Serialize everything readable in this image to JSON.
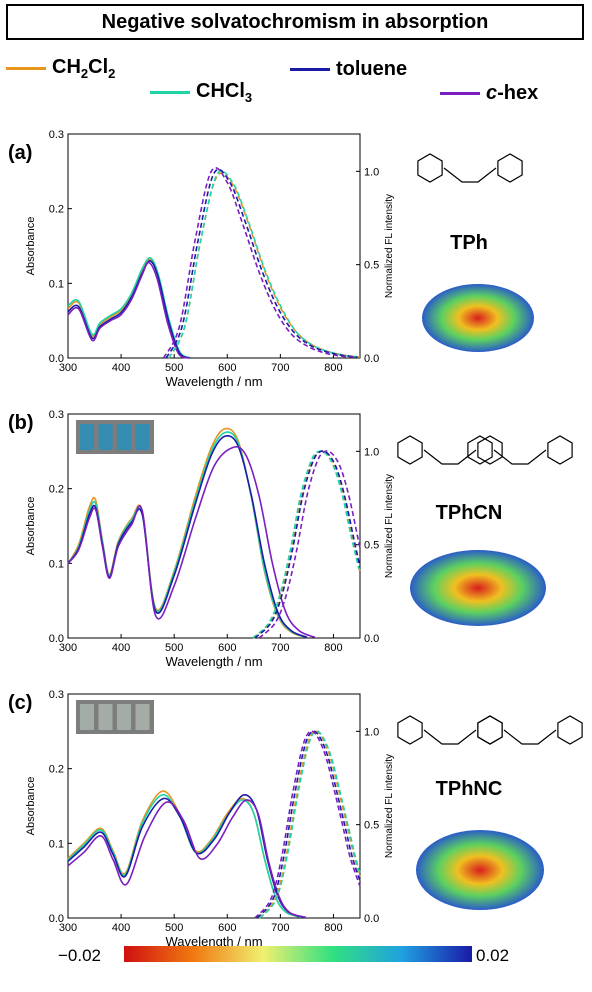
{
  "title": "Negative solvatochromism in absorption",
  "legend": [
    {
      "label": "CH₂Cl₂",
      "color": "#e8951e"
    },
    {
      "label": "CHCl₃",
      "color": "#1fd3a5"
    },
    {
      "label": "toluene",
      "color": "#1a1ca8"
    },
    {
      "label": "c-hex",
      "color": "#7a1fbf"
    }
  ],
  "colorbar": {
    "min_label": "−0.02",
    "max_label": "0.02"
  },
  "chart_data": [
    {
      "panel": "(a)",
      "molecule": "TPh",
      "type": "line",
      "xlabel": "Wavelength / nm",
      "ylabel": "Absorbance",
      "y2label": "Normalized FL intensity",
      "xlim": [
        300,
        850
      ],
      "ylim": [
        0,
        0.3
      ],
      "y2lim": [
        0,
        1.2
      ],
      "xticks": [
        "300",
        "400",
        "500",
        "600",
        "700",
        "800"
      ],
      "yticks": [
        "0.0",
        "0.1",
        "0.2",
        "0.3"
      ],
      "y2ticks": [
        "0.0",
        "0.5",
        "1.0"
      ],
      "abs_series": [
        {
          "name": "CH₂Cl₂",
          "x": [
            300,
            320,
            345,
            360,
            380,
            400,
            420,
            440,
            455,
            470,
            490,
            510,
            530
          ],
          "y": [
            0.066,
            0.074,
            0.03,
            0.045,
            0.055,
            0.064,
            0.085,
            0.118,
            0.132,
            0.11,
            0.05,
            0.008,
            0
          ]
        },
        {
          "name": "CHCl₃",
          "x": [
            300,
            320,
            345,
            360,
            380,
            400,
            420,
            440,
            455,
            470,
            490,
            510,
            530
          ],
          "y": [
            0.07,
            0.076,
            0.032,
            0.047,
            0.057,
            0.066,
            0.087,
            0.12,
            0.134,
            0.112,
            0.052,
            0.009,
            0
          ]
        },
        {
          "name": "toluene",
          "x": [
            300,
            320,
            345,
            360,
            380,
            400,
            420,
            440,
            455,
            470,
            490,
            510,
            530
          ],
          "y": [
            0.062,
            0.069,
            0.027,
            0.042,
            0.052,
            0.061,
            0.082,
            0.114,
            0.13,
            0.108,
            0.048,
            0.007,
            0
          ]
        },
        {
          "name": "c-hex",
          "x": [
            300,
            320,
            345,
            360,
            380,
            400,
            420,
            440,
            452,
            468,
            488,
            508,
            528
          ],
          "y": [
            0.058,
            0.066,
            0.024,
            0.04,
            0.05,
            0.058,
            0.079,
            0.112,
            0.128,
            0.106,
            0.046,
            0.006,
            0
          ]
        }
      ],
      "fl_series": [
        {
          "name": "CH₂Cl₂",
          "x": [
            490,
            520,
            550,
            580,
            610,
            640,
            670,
            700,
            730,
            760,
            790,
            820,
            850
          ],
          "y": [
            0,
            0.17,
            0.63,
            0.97,
            0.93,
            0.72,
            0.47,
            0.27,
            0.14,
            0.07,
            0.035,
            0.015,
            0.005
          ]
        },
        {
          "name": "CHCl₃",
          "x": [
            490,
            520,
            550,
            580,
            610,
            640,
            670,
            700,
            730,
            760,
            790,
            820,
            850
          ],
          "y": [
            0,
            0.17,
            0.63,
            0.98,
            0.94,
            0.73,
            0.48,
            0.28,
            0.14,
            0.07,
            0.035,
            0.015,
            0.005
          ]
        },
        {
          "name": "toluene",
          "x": [
            485,
            515,
            545,
            575,
            605,
            635,
            665,
            695,
            725,
            755,
            785,
            815,
            845
          ],
          "y": [
            0,
            0.17,
            0.63,
            0.99,
            0.94,
            0.72,
            0.47,
            0.27,
            0.14,
            0.07,
            0.035,
            0.015,
            0.005
          ]
        },
        {
          "name": "c-hex",
          "x": [
            480,
            510,
            540,
            570,
            600,
            630,
            660,
            690,
            720,
            750,
            780,
            810,
            840
          ],
          "y": [
            0,
            0.17,
            0.64,
            1.0,
            0.94,
            0.71,
            0.46,
            0.26,
            0.13,
            0.065,
            0.03,
            0.012,
            0.004
          ]
        }
      ]
    },
    {
      "panel": "(b)",
      "molecule": "TPhCN",
      "type": "line",
      "xlabel": "Wavelength / nm",
      "ylabel": "Absorbance",
      "y2label": "Normalized FL intensity",
      "xlim": [
        300,
        850
      ],
      "ylim": [
        0,
        0.3
      ],
      "y2lim": [
        0,
        1.2
      ],
      "xticks": [
        "300",
        "400",
        "500",
        "600",
        "700",
        "800"
      ],
      "yticks": [
        "0.0",
        "0.1",
        "0.2",
        "0.3"
      ],
      "y2ticks": [
        "0.0",
        "0.5",
        "1.0"
      ],
      "abs_series": [
        {
          "name": "CH₂Cl₂",
          "x": [
            300,
            320,
            340,
            352,
            365,
            378,
            395,
            420,
            440,
            465,
            500,
            540,
            570,
            595,
            620,
            645,
            670,
            695,
            720,
            750
          ],
          "y": [
            0.1,
            0.125,
            0.175,
            0.185,
            0.13,
            0.085,
            0.13,
            0.16,
            0.17,
            0.04,
            0.09,
            0.19,
            0.255,
            0.28,
            0.265,
            0.19,
            0.09,
            0.03,
            0.008,
            0.001
          ]
        },
        {
          "name": "CHCl₃",
          "x": [
            300,
            320,
            340,
            352,
            365,
            378,
            395,
            420,
            440,
            465,
            500,
            540,
            570,
            595,
            620,
            645,
            670,
            695,
            720,
            750
          ],
          "y": [
            0.1,
            0.122,
            0.17,
            0.18,
            0.128,
            0.083,
            0.128,
            0.158,
            0.168,
            0.038,
            0.088,
            0.185,
            0.25,
            0.275,
            0.262,
            0.19,
            0.092,
            0.032,
            0.009,
            0.001
          ]
        },
        {
          "name": "toluene",
          "x": [
            300,
            320,
            340,
            352,
            365,
            378,
            395,
            420,
            440,
            465,
            500,
            540,
            570,
            595,
            620,
            645,
            670,
            695,
            720,
            750
          ],
          "y": [
            0.1,
            0.12,
            0.165,
            0.175,
            0.125,
            0.082,
            0.126,
            0.155,
            0.165,
            0.036,
            0.084,
            0.18,
            0.245,
            0.27,
            0.258,
            0.192,
            0.1,
            0.035,
            0.01,
            0.001
          ]
        },
        {
          "name": "c-hex",
          "x": [
            300,
            320,
            340,
            352,
            365,
            378,
            395,
            420,
            440,
            465,
            500,
            540,
            575,
            610,
            635,
            660,
            685,
            710,
            735,
            765
          ],
          "y": [
            0.1,
            0.118,
            0.16,
            0.172,
            0.122,
            0.08,
            0.123,
            0.152,
            0.17,
            0.03,
            0.07,
            0.16,
            0.23,
            0.255,
            0.245,
            0.19,
            0.1,
            0.035,
            0.01,
            0.001
          ]
        }
      ],
      "fl_series": [
        {
          "name": "CH₂Cl₂",
          "x": [
            650,
            680,
            700,
            720,
            740,
            760,
            775,
            790,
            805,
            820,
            835,
            850
          ],
          "y": [
            0,
            0.08,
            0.22,
            0.46,
            0.76,
            0.95,
            1.0,
            0.98,
            0.9,
            0.75,
            0.55,
            0.35
          ]
        },
        {
          "name": "CHCl₃",
          "x": [
            648,
            678,
            698,
            718,
            738,
            758,
            773,
            788,
            803,
            818,
            833,
            848
          ],
          "y": [
            0,
            0.08,
            0.22,
            0.46,
            0.76,
            0.95,
            1.0,
            0.98,
            0.9,
            0.75,
            0.55,
            0.37
          ]
        },
        {
          "name": "toluene",
          "x": [
            652,
            682,
            702,
            722,
            742,
            762,
            777,
            792,
            807,
            822,
            837,
            850
          ],
          "y": [
            0,
            0.08,
            0.22,
            0.46,
            0.76,
            0.95,
            1.0,
            0.98,
            0.9,
            0.75,
            0.55,
            0.38
          ]
        },
        {
          "name": "c-hex",
          "x": [
            660,
            690,
            710,
            730,
            750,
            770,
            785,
            800,
            815,
            830,
            845,
            850
          ],
          "y": [
            0,
            0.08,
            0.22,
            0.46,
            0.76,
            0.95,
            1.0,
            0.98,
            0.9,
            0.75,
            0.55,
            0.48
          ]
        }
      ]
    },
    {
      "panel": "(c)",
      "molecule": "TPhNC",
      "type": "line",
      "xlabel": "Wavelength / nm",
      "ylabel": "Absorbance",
      "y2label": "Normalized FL intensity",
      "xlim": [
        300,
        850
      ],
      "ylim": [
        0,
        0.3
      ],
      "y2lim": [
        0,
        1.2
      ],
      "xticks": [
        "300",
        "400",
        "500",
        "600",
        "700",
        "800"
      ],
      "yticks": [
        "0.0",
        "0.1",
        "0.2",
        "0.3"
      ],
      "y2ticks": [
        "0.0",
        "0.5",
        "1.0"
      ],
      "abs_series": [
        {
          "name": "CH₂Cl₂",
          "x": [
            300,
            330,
            362,
            385,
            408,
            440,
            478,
            510,
            540,
            570,
            600,
            628,
            650,
            670,
            690,
            710,
            740
          ],
          "y": [
            0.08,
            0.1,
            0.12,
            0.09,
            0.06,
            0.13,
            0.17,
            0.14,
            0.09,
            0.105,
            0.14,
            0.16,
            0.14,
            0.08,
            0.03,
            0.008,
            0.001
          ]
        },
        {
          "name": "CHCl₃",
          "x": [
            300,
            330,
            362,
            385,
            408,
            440,
            478,
            510,
            540,
            570,
            600,
            628,
            650,
            670,
            690,
            710,
            740
          ],
          "y": [
            0.078,
            0.098,
            0.118,
            0.088,
            0.058,
            0.127,
            0.165,
            0.137,
            0.088,
            0.103,
            0.137,
            0.158,
            0.14,
            0.08,
            0.03,
            0.008,
            0.001
          ]
        },
        {
          "name": "toluene",
          "x": [
            300,
            330,
            362,
            385,
            408,
            440,
            480,
            512,
            542,
            575,
            605,
            632,
            655,
            675,
            695,
            715,
            745
          ],
          "y": [
            0.076,
            0.095,
            0.115,
            0.085,
            0.056,
            0.122,
            0.16,
            0.134,
            0.087,
            0.105,
            0.142,
            0.165,
            0.145,
            0.08,
            0.03,
            0.008,
            0.001
          ]
        },
        {
          "name": "c-hex",
          "x": [
            300,
            330,
            362,
            385,
            410,
            445,
            485,
            518,
            548,
            580,
            610,
            636,
            658,
            678,
            698,
            718,
            748
          ],
          "y": [
            0.07,
            0.088,
            0.11,
            0.078,
            0.045,
            0.11,
            0.155,
            0.13,
            0.08,
            0.098,
            0.135,
            0.158,
            0.14,
            0.075,
            0.028,
            0.007,
            0.001
          ]
        }
      ],
      "fl_series": [
        {
          "name": "CH₂Cl₂",
          "x": [
            660,
            690,
            710,
            730,
            750,
            765,
            780,
            795,
            810,
            825,
            840,
            850
          ],
          "y": [
            0,
            0.1,
            0.32,
            0.65,
            0.92,
            1.0,
            0.96,
            0.85,
            0.68,
            0.5,
            0.32,
            0.22
          ]
        },
        {
          "name": "CHCl₃",
          "x": [
            662,
            692,
            712,
            732,
            752,
            767,
            782,
            797,
            812,
            827,
            842,
            850
          ],
          "y": [
            0,
            0.1,
            0.32,
            0.65,
            0.92,
            1.0,
            0.96,
            0.85,
            0.68,
            0.5,
            0.32,
            0.24
          ]
        },
        {
          "name": "toluene",
          "x": [
            656,
            686,
            706,
            726,
            746,
            761,
            776,
            791,
            806,
            821,
            836,
            850
          ],
          "y": [
            0,
            0.1,
            0.32,
            0.65,
            0.92,
            1.0,
            0.96,
            0.85,
            0.68,
            0.5,
            0.32,
            0.2
          ]
        },
        {
          "name": "c-hex",
          "x": [
            652,
            682,
            702,
            722,
            742,
            757,
            772,
            787,
            802,
            817,
            832,
            850
          ],
          "y": [
            0,
            0.1,
            0.32,
            0.65,
            0.92,
            1.0,
            0.96,
            0.85,
            0.68,
            0.5,
            0.32,
            0.17
          ]
        }
      ]
    }
  ]
}
